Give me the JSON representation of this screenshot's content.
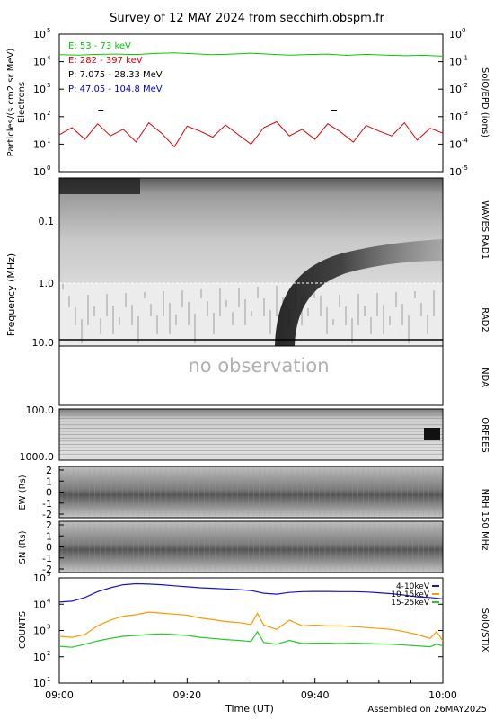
{
  "title": "Survey of 12 MAY 2024 from secchirh.obspm.fr",
  "footer": "Assembled on 26MAY2025",
  "colors": {
    "green": "#00cc00",
    "red": "#dd0000",
    "black": "#000000",
    "blue": "#0000cc",
    "stix_blue": "#1515c8",
    "stix_orange": "#ff9900",
    "stix_green": "#22cc22"
  },
  "chart_data": [
    {
      "type": "line",
      "panel": "SolO/EPD",
      "ylabel_left": "Particles/(s cm2 sr MeV)",
      "ylabel_left_sub": "Electrons",
      "ylabel_right": "SolO/EPD (ions)",
      "yscale": "log",
      "ylim": [
        1,
        100000
      ],
      "ylim_right": [
        1e-05,
        1
      ],
      "yticks_exp": [
        "0",
        "1",
        "2",
        "3",
        "4",
        "5"
      ],
      "yticks_right_exp": [
        "-5",
        "-4",
        "-3",
        "-2",
        "-1",
        "0"
      ],
      "xlim_min": [
        0,
        60
      ],
      "series": [
        {
          "name": "E: 53 - 73 keV",
          "color_key": "green",
          "x": [
            0,
            3,
            6,
            9,
            12,
            15,
            18,
            21,
            24,
            27,
            30,
            33,
            36,
            39,
            42,
            45,
            48,
            51,
            54,
            57,
            60
          ],
          "values": [
            18000,
            17500,
            18500,
            19000,
            18200,
            20000,
            21000,
            19500,
            18000,
            19000,
            20500,
            18800,
            17500,
            18200,
            19000,
            17000,
            18500,
            17500,
            16500,
            17000,
            16000
          ]
        },
        {
          "name": "E: 282 - 397 keV",
          "color_key": "red",
          "x": [
            0,
            2,
            4,
            6,
            8,
            10,
            12,
            14,
            16,
            18,
            20,
            22,
            24,
            26,
            28,
            30,
            32,
            34,
            36,
            38,
            40,
            42,
            44,
            46,
            48,
            50,
            52,
            54,
            56,
            58,
            60
          ],
          "values": [
            22,
            40,
            15,
            55,
            20,
            35,
            12,
            60,
            25,
            8,
            45,
            30,
            18,
            50,
            22,
            10,
            40,
            65,
            20,
            35,
            15,
            55,
            28,
            12,
            48,
            30,
            20,
            60,
            14,
            38,
            25
          ]
        },
        {
          "name": "P: 7.075 - 28.33 MeV",
          "color_key": "black",
          "x": [],
          "values": []
        },
        {
          "name": "P: 47.05 - 104.8 MeV",
          "color_key": "blue",
          "x": [],
          "values": []
        }
      ],
      "markers": [
        {
          "x": 6.5,
          "y": 170
        },
        {
          "x": 43,
          "y": 170
        }
      ]
    },
    {
      "type": "heatmap",
      "panel": "WAVES RAD1 / RAD2",
      "ylabel": "Frequency (MHz)",
      "yticks": [
        "0.1",
        "1.0",
        "10.0"
      ],
      "right_labels": [
        "WAVES RAD1",
        "RAD2"
      ],
      "burst_start_min": 33.5
    },
    {
      "type": "heatmap",
      "panel": "NDA",
      "overlay_text": "no observation",
      "right_label": "NDA"
    },
    {
      "type": "heatmap",
      "panel": "ORFEES",
      "yticks": [
        "100.0",
        "1000.0"
      ],
      "right_label": "ORFEES"
    },
    {
      "type": "heatmap",
      "panel": "NRH 150 MHz EW",
      "ylabel": "EW (Rs)",
      "yticks": [
        "2",
        "1",
        "0",
        "-1",
        "-2"
      ],
      "right_label": "NRH 150 MHz"
    },
    {
      "type": "heatmap",
      "panel": "NRH 150 MHz SN",
      "ylabel": "SN (Rs)",
      "yticks": [
        "2",
        "1",
        "0",
        "-1",
        "-2"
      ]
    },
    {
      "type": "line",
      "panel": "SolO/STIX",
      "ylabel": "COUNTS",
      "ylabel_right": "SolO/STIX",
      "yscale": "log",
      "ylim": [
        10,
        100000
      ],
      "yticks_exp": [
        "1",
        "2",
        "3",
        "4",
        "5"
      ],
      "xlabel": "Time (UT)",
      "xticks": [
        "09:00",
        "09:20",
        "09:40",
        "10:00"
      ],
      "series": [
        {
          "name": "4-10keV",
          "color_key": "stix_blue",
          "x": [
            0,
            2,
            4,
            6,
            8,
            10,
            12,
            14,
            16,
            18,
            20,
            22,
            24,
            26,
            28,
            30,
            32,
            34,
            36,
            38,
            40,
            42,
            44,
            46,
            48,
            50,
            52,
            54,
            56,
            58,
            60
          ],
          "values": [
            12000,
            13000,
            18000,
            30000,
            42000,
            55000,
            60000,
            58000,
            55000,
            50000,
            46000,
            42000,
            40000,
            38000,
            36000,
            33000,
            26000,
            24000,
            28000,
            30000,
            30500,
            30500,
            30000,
            30000,
            29000,
            27000,
            25000,
            22000,
            19000,
            18000,
            16000
          ]
        },
        {
          "name": "10-15keV",
          "color_key": "stix_orange",
          "x": [
            0,
            2,
            4,
            6,
            8,
            10,
            12,
            14,
            16,
            18,
            20,
            22,
            24,
            26,
            28,
            30,
            31,
            32,
            34,
            36,
            38,
            40,
            42,
            44,
            46,
            48,
            50,
            52,
            54,
            56,
            58,
            59,
            60
          ],
          "values": [
            600,
            550,
            700,
            1500,
            2500,
            3500,
            4000,
            5000,
            4600,
            4200,
            3800,
            3000,
            2600,
            2200,
            2000,
            1700,
            4500,
            1600,
            1100,
            2500,
            1500,
            1600,
            1500,
            1500,
            1400,
            1300,
            1200,
            1100,
            900,
            700,
            500,
            900,
            400
          ]
        },
        {
          "name": "15-25keV",
          "color_key": "stix_green",
          "x": [
            0,
            2,
            4,
            6,
            8,
            10,
            12,
            14,
            16,
            18,
            20,
            22,
            24,
            26,
            28,
            30,
            31,
            32,
            34,
            36,
            38,
            40,
            42,
            44,
            46,
            48,
            50,
            52,
            54,
            56,
            58,
            59,
            60
          ],
          "values": [
            250,
            230,
            300,
            400,
            500,
            600,
            650,
            700,
            750,
            700,
            650,
            550,
            500,
            450,
            420,
            380,
            900,
            350,
            300,
            420,
            320,
            330,
            330,
            320,
            330,
            320,
            310,
            300,
            280,
            260,
            240,
            300,
            260
          ]
        }
      ]
    }
  ]
}
